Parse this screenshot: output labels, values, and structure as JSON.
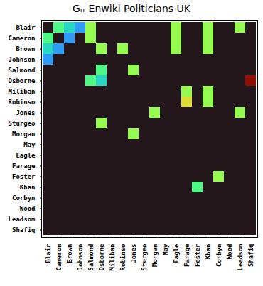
{
  "chart_data": {
    "type": "heatmap",
    "title": "Gᵣᵣ Enwiki Politicians UK",
    "categories": [
      "Blair",
      "Cameron",
      "Brown",
      "Johnson",
      "Salmond",
      "Osborne",
      "Miliban",
      "Robinso",
      "Jones",
      "Sturgeo",
      "Morgan",
      "May",
      "Eagle",
      "Farage",
      "Foster",
      "Khan",
      "Corbyn",
      "Wood",
      "Leadsom",
      "Shafiq"
    ],
    "values": [
      [
        0.0,
        0.4,
        0.3,
        0.2,
        0.5,
        0.0,
        0.0,
        0.0,
        0.0,
        0.0,
        0.0,
        0.0,
        0.5,
        0.0,
        0.0,
        0.5,
        0.0,
        0.0,
        0.5,
        0.0
      ],
      [
        0.4,
        0.0,
        0.2,
        0.0,
        0.5,
        0.0,
        0.0,
        0.0,
        0.0,
        0.0,
        0.0,
        0.0,
        0.5,
        0.0,
        0.0,
        0.5,
        0.0,
        0.0,
        0.0,
        0.0
      ],
      [
        0.3,
        0.2,
        0.0,
        0.0,
        0.0,
        0.5,
        0.0,
        0.5,
        0.0,
        0.0,
        0.0,
        0.0,
        0.5,
        0.0,
        0.0,
        0.5,
        0.0,
        0.0,
        0.0,
        0.0
      ],
      [
        0.2,
        0.0,
        0.0,
        0.0,
        0.0,
        0.0,
        0.0,
        0.0,
        0.0,
        0.0,
        0.0,
        0.0,
        0.0,
        0.0,
        0.0,
        0.0,
        0.0,
        0.0,
        0.0,
        0.0
      ],
      [
        0.0,
        0.0,
        0.0,
        0.0,
        0.0,
        0.4,
        0.0,
        0.0,
        0.5,
        0.0,
        0.0,
        0.0,
        0.0,
        0.0,
        0.0,
        0.0,
        0.0,
        0.0,
        0.0,
        0.0
      ],
      [
        0.0,
        0.0,
        0.0,
        0.0,
        0.4,
        0.3,
        0.0,
        0.0,
        0.0,
        0.0,
        0.0,
        0.0,
        0.0,
        0.0,
        0.0,
        0.0,
        0.0,
        0.0,
        0.0,
        1.0
      ],
      [
        0.0,
        0.0,
        0.0,
        0.0,
        0.0,
        0.0,
        0.0,
        0.0,
        0.0,
        0.0,
        0.0,
        0.0,
        0.0,
        0.5,
        0.0,
        0.5,
        0.0,
        0.0,
        0.0,
        0.0
      ],
      [
        0.0,
        0.0,
        0.0,
        0.0,
        0.0,
        0.0,
        0.0,
        0.0,
        0.0,
        0.0,
        0.0,
        0.0,
        0.0,
        0.6,
        0.0,
        0.5,
        0.0,
        0.0,
        0.0,
        0.0
      ],
      [
        0.0,
        0.0,
        0.0,
        0.0,
        0.0,
        0.0,
        0.0,
        0.0,
        0.0,
        0.0,
        0.5,
        0.0,
        0.0,
        0.0,
        0.0,
        0.0,
        0.0,
        0.0,
        0.5,
        0.0
      ],
      [
        0.0,
        0.0,
        0.0,
        0.0,
        0.0,
        0.5,
        0.0,
        0.0,
        0.0,
        0.0,
        0.0,
        0.0,
        0.0,
        0.0,
        0.0,
        0.0,
        0.0,
        0.0,
        0.0,
        0.0
      ],
      [
        0.0,
        0.0,
        0.0,
        0.0,
        0.0,
        0.0,
        0.0,
        0.0,
        0.5,
        0.0,
        0.0,
        0.0,
        0.0,
        0.0,
        0.0,
        0.0,
        0.0,
        0.0,
        0.0,
        0.0
      ],
      [
        0.0,
        0.0,
        0.0,
        0.0,
        0.0,
        0.0,
        0.0,
        0.0,
        0.0,
        0.0,
        0.0,
        0.0,
        0.0,
        0.0,
        0.0,
        0.0,
        0.0,
        0.0,
        0.0,
        0.0
      ],
      [
        0.0,
        0.0,
        0.0,
        0.0,
        0.0,
        0.0,
        0.0,
        0.0,
        0.0,
        0.0,
        0.0,
        0.0,
        0.0,
        0.0,
        0.0,
        0.0,
        0.0,
        0.0,
        0.0,
        0.0
      ],
      [
        0.0,
        0.0,
        0.0,
        0.0,
        0.0,
        0.0,
        0.0,
        0.0,
        0.0,
        0.0,
        0.0,
        0.0,
        0.0,
        0.0,
        0.0,
        0.0,
        0.0,
        0.0,
        0.0,
        0.0
      ],
      [
        0.0,
        0.0,
        0.0,
        0.0,
        0.0,
        0.0,
        0.0,
        0.0,
        0.0,
        0.0,
        0.0,
        0.0,
        0.0,
        0.0,
        0.0,
        0.0,
        0.5,
        0.0,
        0.0,
        0.0
      ],
      [
        0.0,
        0.0,
        0.0,
        0.0,
        0.0,
        0.0,
        0.0,
        0.0,
        0.0,
        0.0,
        0.0,
        0.0,
        0.0,
        0.0,
        0.4,
        0.0,
        0.0,
        0.0,
        0.0,
        0.0
      ],
      [
        0.0,
        0.0,
        0.0,
        0.0,
        0.0,
        0.0,
        0.0,
        0.0,
        0.0,
        0.0,
        0.0,
        0.0,
        0.0,
        0.0,
        0.0,
        0.0,
        0.0,
        0.0,
        0.0,
        0.0
      ],
      [
        0.0,
        0.0,
        0.0,
        0.0,
        0.0,
        0.0,
        0.0,
        0.0,
        0.0,
        0.0,
        0.0,
        0.0,
        0.0,
        0.0,
        0.0,
        0.0,
        0.0,
        0.0,
        0.0,
        0.0
      ],
      [
        0.0,
        0.0,
        0.0,
        0.0,
        0.0,
        0.0,
        0.0,
        0.0,
        0.0,
        0.0,
        0.0,
        0.0,
        0.0,
        0.0,
        0.0,
        0.0,
        0.0,
        0.0,
        0.0,
        0.0
      ],
      [
        0.0,
        0.0,
        0.0,
        0.0,
        0.0,
        0.0,
        0.0,
        0.0,
        0.0,
        0.0,
        0.0,
        0.0,
        0.0,
        0.0,
        0.0,
        0.0,
        0.0,
        0.0,
        0.0,
        0.0
      ]
    ],
    "zlim": [
      0.0,
      1.0
    ]
  }
}
